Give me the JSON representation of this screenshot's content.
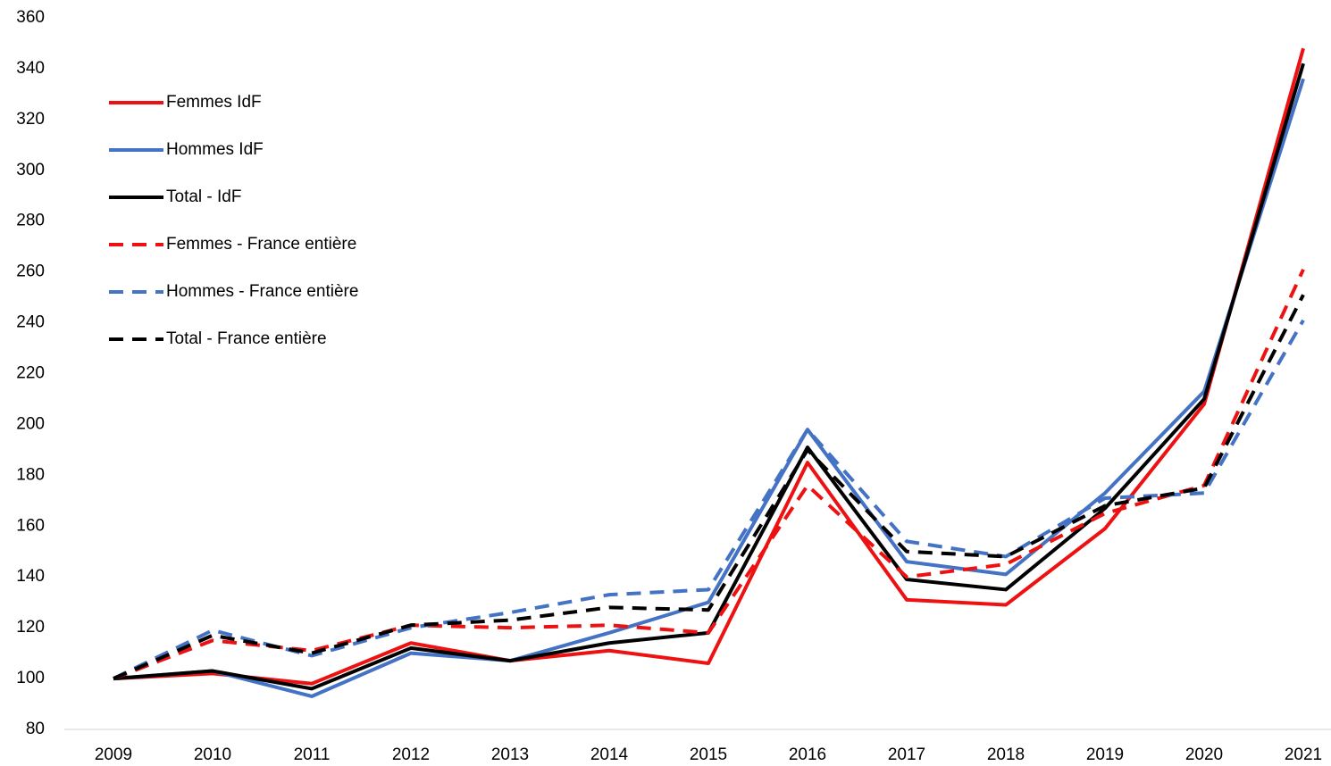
{
  "chart_data": {
    "type": "line",
    "categories": [
      "2009",
      "2010",
      "2011",
      "2012",
      "2013",
      "2014",
      "2015",
      "2016",
      "2017",
      "2018",
      "2019",
      "2020",
      "2021"
    ],
    "series": [
      {
        "name": "Femmes IdF",
        "color": "#ee1111",
        "dashed": false,
        "values": [
          100,
          102,
          98,
          114,
          107,
          111,
          106,
          185,
          131,
          129,
          159,
          208,
          348
        ]
      },
      {
        "name": "Hommes IdF",
        "color": "#4472c4",
        "dashed": false,
        "values": [
          100,
          103,
          93,
          110,
          107,
          118,
          130,
          198,
          146,
          141,
          173,
          213,
          336
        ]
      },
      {
        "name": "Total - IdF",
        "color": "#000000",
        "dashed": false,
        "values": [
          100,
          103,
          96,
          112,
          107,
          114,
          118,
          191,
          139,
          135,
          167,
          210,
          342
        ]
      },
      {
        "name": "Femmes - France entière",
        "color": "#ee1111",
        "dashed": true,
        "values": [
          100,
          115,
          111,
          121,
          120,
          121,
          118,
          176,
          140,
          145,
          165,
          176,
          261
        ]
      },
      {
        "name": "Hommes - France entière",
        "color": "#4472c4",
        "dashed": true,
        "values": [
          100,
          119,
          109,
          120,
          126,
          133,
          135,
          198,
          154,
          148,
          171,
          173,
          241
        ]
      },
      {
        "name": "Total - France entière",
        "color": "#000000",
        "dashed": true,
        "values": [
          100,
          117,
          110,
          121,
          123,
          128,
          127,
          190,
          150,
          148,
          168,
          175,
          251
        ]
      }
    ],
    "ylim": [
      80,
      360
    ],
    "yticks": [
      80,
      100,
      120,
      140,
      160,
      180,
      200,
      220,
      240,
      260,
      280,
      300,
      320,
      340,
      360
    ],
    "legend": "upper left"
  }
}
